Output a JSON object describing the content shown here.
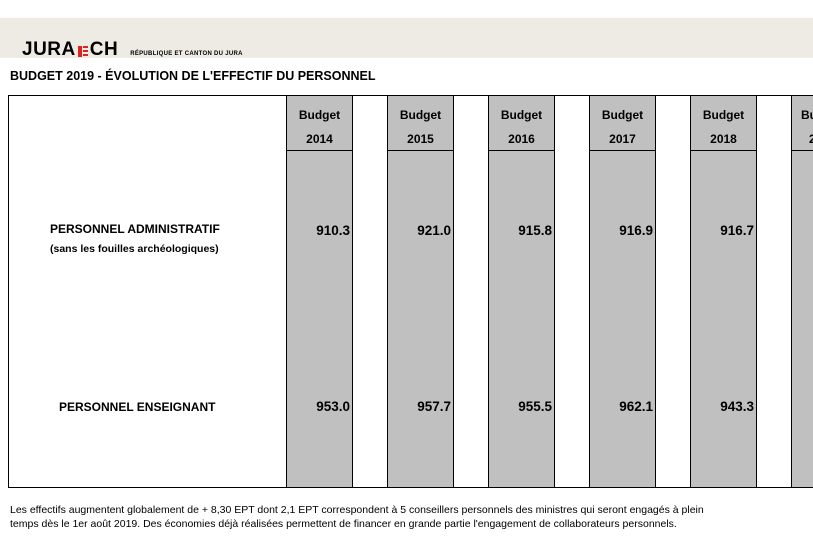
{
  "header": {
    "logo_left": "JURA",
    "logo_right": "CH",
    "logo_sub": "RÉPUBLIQUE ET CANTON DU JURA"
  },
  "page_title": "BUDGET 2019  -  ÉVOLUTION DE L'EFFECTIF DU PERSONNEL",
  "table": {
    "columns": [
      {
        "label": "Budget",
        "year": "2014"
      },
      {
        "label": "Budget",
        "year": "2015"
      },
      {
        "label": "Budget",
        "year": "2016"
      },
      {
        "label": "Budget",
        "year": "2017"
      },
      {
        "label": "Budget",
        "year": "2018"
      },
      {
        "label": "Bu",
        "year": "2"
      }
    ],
    "rows": [
      {
        "label": "PERSONNEL  ADMINISTRATIF",
        "sublabel": "(sans les fouilles archéologiques)",
        "values": [
          "910.3",
          "921.0",
          "915.8",
          "916.9",
          "916.7",
          ""
        ]
      },
      {
        "label": "PERSONNEL  ENSEIGNANT",
        "sublabel": "",
        "values": [
          "953.0",
          "957.7",
          "955.5",
          "962.1",
          "943.3",
          ""
        ]
      }
    ]
  },
  "footnote": {
    "line1": "Les effectifs augmentent globalement de + 8,30 EPT dont 2,1 EPT correspondent à 5 conseillers personnels des ministres qui seront engagés à plein",
    "line2": "temps dès le 1er août 2019. Des économies déjà réalisées permettent de financer en grande partie l'engagement de collaborateurs personnels."
  }
}
